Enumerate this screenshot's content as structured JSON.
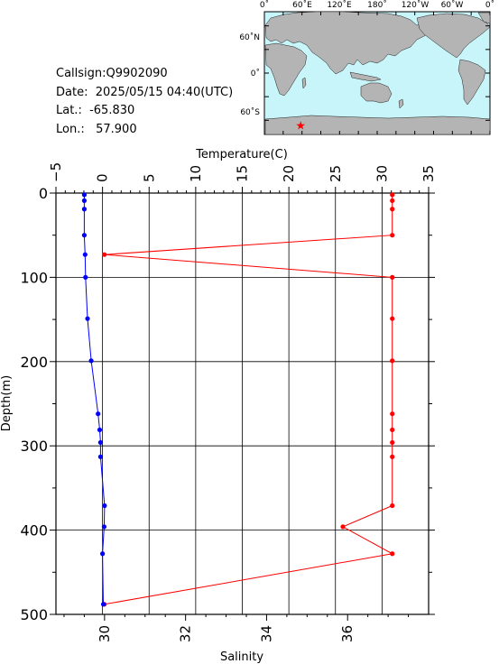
{
  "station": {
    "callsign": "Callsign:Q9902090",
    "date": "Date:  2025/05/15 04:40(UTC)",
    "lat": "Lat.:  -65.830",
    "lon": "Lon.:   57.900"
  },
  "map": {
    "lon_labels": [
      "0˚",
      "60˚E",
      "120˚E",
      "180˚",
      "120˚W",
      "60˚W",
      "0˚"
    ],
    "lat_labels": [
      "60˚N",
      "0˚",
      "60˚S"
    ],
    "ocean_color": "#c8f5fa",
    "land_color": "#b4b4b4",
    "marker_color": "#ff0000",
    "marker": {
      "lon": 57.9,
      "lat": -65.83
    }
  },
  "chart_data": {
    "type": "line",
    "ylabel": "Depth(m)",
    "ylim": [
      0,
      500
    ],
    "y_ticks": [
      0,
      100,
      200,
      300,
      400,
      500
    ],
    "y_reversed": true,
    "grid": true,
    "temperature_axis": {
      "label": "Temperature(C)",
      "range": [
        -5,
        35
      ],
      "ticks": [
        -5,
        0,
        5,
        10,
        15,
        20,
        25,
        30,
        35
      ],
      "color": "#ff0000"
    },
    "salinity_axis": {
      "label": "Salinity",
      "range": [
        28.8,
        38.0
      ],
      "ticks": [
        30,
        32,
        34,
        36
      ],
      "color": "#0000ff"
    },
    "series": [
      {
        "axis": "temperature",
        "color": "#ff0000",
        "depth": [
          2,
          9,
          19,
          50,
          73,
          100,
          149,
          199,
          262,
          281,
          296,
          313,
          371,
          396,
          428,
          488
        ],
        "values": [
          31.1,
          31.1,
          31.1,
          31.1,
          0.2,
          31.1,
          31.1,
          31.1,
          31.1,
          31.1,
          31.1,
          31.1,
          31.1,
          25.8,
          31.1,
          0.2
        ]
      },
      {
        "axis": "salinity",
        "color": "#0000ff",
        "depth": [
          2,
          9,
          19,
          50,
          73,
          100,
          149,
          199,
          262,
          281,
          296,
          313,
          371,
          396,
          428,
          488
        ],
        "values": [
          29.5,
          29.5,
          29.5,
          29.5,
          29.52,
          29.53,
          29.58,
          29.67,
          29.84,
          29.88,
          29.9,
          29.9,
          30.0,
          29.99,
          29.95,
          29.97
        ]
      }
    ]
  }
}
